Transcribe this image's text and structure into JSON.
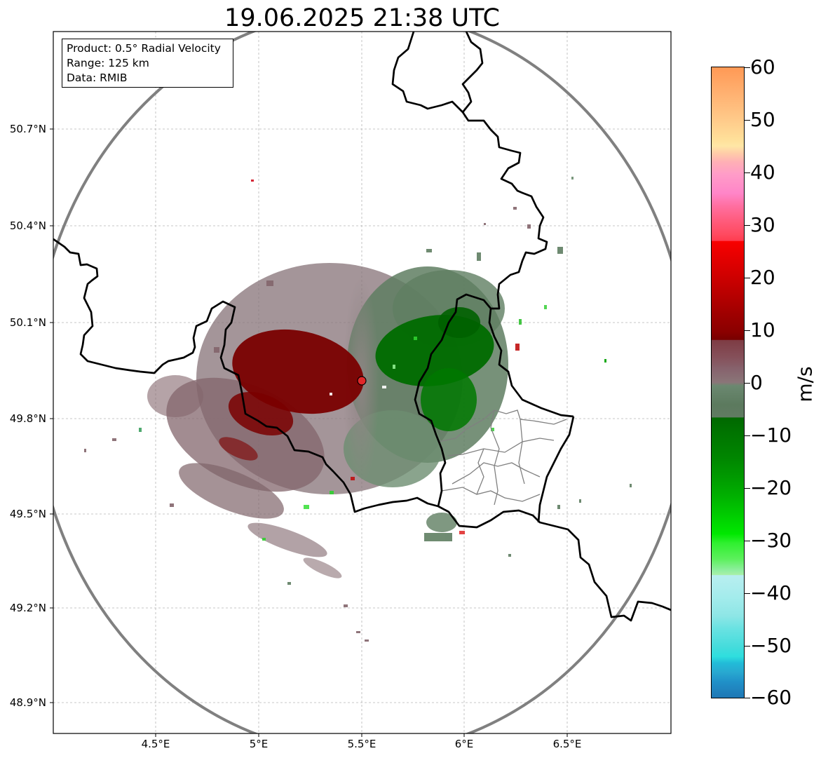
{
  "title": "19.06.2025 21:38 UTC",
  "info": {
    "product": "Product: 0.5° Radial Velocity",
    "range": "Range: 125 km",
    "data": "Data: RMIB"
  },
  "map": {
    "lon_range": [
      4.0,
      7.0
    ],
    "lat_range": [
      48.8,
      50.98
    ],
    "radar_site": {
      "lon": 5.5,
      "lat": 49.91
    },
    "range_ring_km": 125,
    "grid": true,
    "lat_ticks": [
      "50.7°N",
      "50.4°N",
      "50.1°N",
      "49.8°N",
      "49.5°N",
      "49.2°N",
      "48.9°N"
    ],
    "lon_ticks": [
      "4.5°E",
      "5°E",
      "5.5°E",
      "6°E",
      "6.5°E"
    ]
  },
  "colorbar": {
    "label": "m/s",
    "min": -60,
    "max": 60,
    "ticks": [
      "60",
      "50",
      "40",
      "30",
      "20",
      "10",
      "0",
      "−10",
      "−20",
      "−30",
      "−40",
      "−50",
      "−60"
    ]
  }
}
